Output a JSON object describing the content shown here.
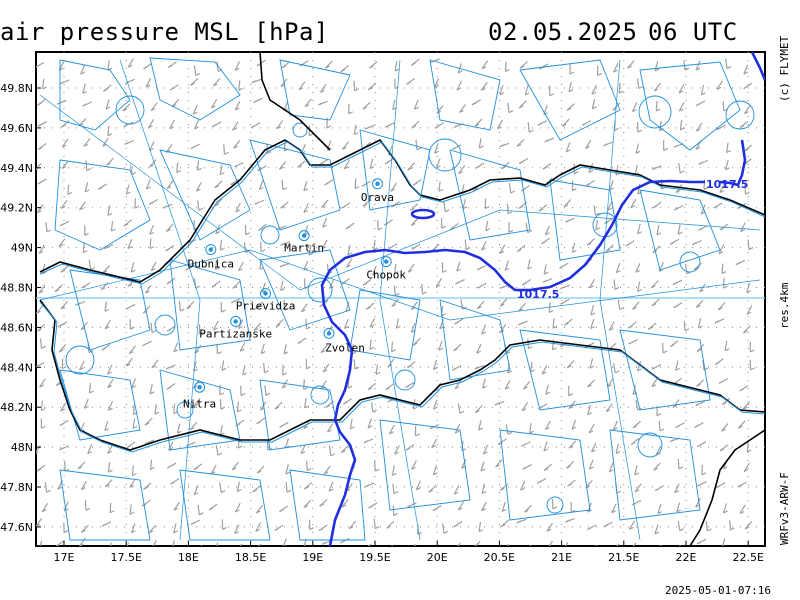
{
  "header": {
    "title": "air pressure MSL [hPa]",
    "date": "02.05.2025",
    "time": "06 UTC"
  },
  "side_labels": {
    "copyright": "(c) FLYMET",
    "resolution": "res.4km",
    "model": "WRFv3-ARW-F"
  },
  "footer": {
    "timestamp": "2025-05-01-07:16"
  },
  "map": {
    "lat_labels": [
      "49.8N",
      "49.6N",
      "49.4N",
      "49.2N",
      "49N",
      "48.8N",
      "48.6N",
      "48.4N",
      "48.2N",
      "48N",
      "47.8N",
      "47.6N"
    ],
    "lon_labels": [
      "17E",
      "17.5E",
      "18E",
      "18.5E",
      "19E",
      "19.5E",
      "20E",
      "20.5E",
      "21E",
      "21.5E",
      "22E",
      "22.5E"
    ],
    "cities": [
      {
        "name": "Orava",
        "lon": 19.52,
        "lat": 49.32
      },
      {
        "name": "Martin",
        "lon": 18.93,
        "lat": 49.06
      },
      {
        "name": "Dubnica",
        "lon": 18.18,
        "lat": 48.99
      },
      {
        "name": "Chopok",
        "lon": 19.59,
        "lat": 48.93
      },
      {
        "name": "Prievidza",
        "lon": 18.62,
        "lat": 48.77
      },
      {
        "name": "Partizanske",
        "lon": 18.38,
        "lat": 48.63
      },
      {
        "name": "Zvolen",
        "lon": 19.13,
        "lat": 48.57
      },
      {
        "name": "Nitra",
        "lon": 18.09,
        "lat": 48.3
      }
    ],
    "isobar_value": "1017.5",
    "isobar_labels": [
      "1017.5",
      "1017.5"
    ],
    "colors": {
      "isobar": "#1f2fe0",
      "boundaries": "#1e90e0",
      "wind": "#a0a0a0",
      "border": "#000000",
      "grid": "#888888"
    }
  }
}
